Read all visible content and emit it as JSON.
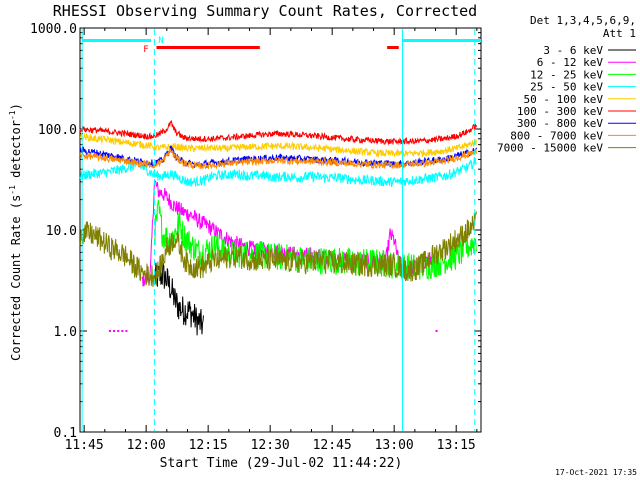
{
  "chart_data": {
    "type": "line",
    "title": "RHESSI Observing Summary Count Rates, Corrected",
    "xlabel": "Start Time (29-Jul-02 11:44:22)",
    "ylabel_main": "Corrected Count Rate (s",
    "ylabel_sup1": "-1",
    "ylabel_mid": " detector",
    "ylabel_sup2": "-1",
    "ylabel_end": ")",
    "yscale": "log",
    "ylim": [
      0.1,
      1000
    ],
    "xlim_minutes": [
      -1,
      96
    ],
    "x_ticks": [
      {
        "label": "11:45",
        "t": 0
      },
      {
        "label": "12:00",
        "t": 15
      },
      {
        "label": "12:15",
        "t": 30
      },
      {
        "label": "12:30",
        "t": 45
      },
      {
        "label": "12:45",
        "t": 60
      },
      {
        "label": "13:00",
        "t": 75
      },
      {
        "label": "13:15",
        "t": 90
      }
    ],
    "y_ticks": [
      {
        "label": "0.1",
        "v": 0.1
      },
      {
        "label": "1.0",
        "v": 1
      },
      {
        "label": "10.0",
        "v": 10
      },
      {
        "label": "100.0",
        "v": 100
      },
      {
        "label": "1000.0",
        "v": 1000
      }
    ],
    "legend_header": [
      "Det 1,3,4,5,6,9,",
      "Att 1"
    ],
    "series": [
      {
        "name": "3 - 6 keV",
        "color": "#000000",
        "points": [
          [
            17,
            3.3
          ],
          [
            18,
            3.5
          ],
          [
            19,
            3.6
          ],
          [
            20,
            3.2
          ],
          [
            21,
            2.6
          ],
          [
            22,
            2.0
          ],
          [
            23,
            1.7
          ],
          [
            24,
            1.6
          ],
          [
            25,
            1.6
          ],
          [
            26,
            1.5
          ],
          [
            27,
            1.3
          ],
          [
            28,
            1.2
          ],
          [
            29,
            1.1
          ]
        ]
      },
      {
        "name": "6 - 12 keV",
        "color": "#ff00ff",
        "points": [
          [
            14,
            3.2
          ],
          [
            15,
            3.3
          ],
          [
            16,
            3.4
          ],
          [
            17,
            30
          ],
          [
            18,
            24
          ],
          [
            19,
            23
          ],
          [
            20,
            21
          ],
          [
            21,
            19
          ],
          [
            22,
            17
          ],
          [
            24,
            15
          ],
          [
            26,
            14
          ],
          [
            28,
            12
          ],
          [
            30,
            11
          ],
          [
            32,
            9.5
          ],
          [
            34,
            8.5
          ],
          [
            36,
            7.5
          ],
          [
            38,
            7.0
          ],
          [
            40,
            6.6
          ],
          [
            42,
            6.4
          ],
          [
            44,
            6.3
          ],
          [
            46,
            6.2
          ],
          [
            48,
            6.0
          ],
          [
            50,
            5.8
          ],
          [
            55,
            5.6
          ],
          [
            60,
            5.2
          ],
          [
            65,
            5.0
          ],
          [
            70,
            4.9
          ],
          [
            73,
            4.9
          ],
          [
            74,
            9.0
          ],
          [
            75,
            8.0
          ],
          [
            76,
            5.0
          ],
          [
            78,
            3.5
          ],
          [
            80,
            4.5
          ],
          [
            84,
            5.2
          ]
        ]
      },
      {
        "name": "12 - 25 keV",
        "color": "#00ff00",
        "points": [
          [
            17,
            9.0
          ],
          [
            18,
            16
          ],
          [
            19,
            9.0
          ],
          [
            20,
            8.5
          ],
          [
            21,
            8.0
          ],
          [
            22,
            9.5
          ],
          [
            23,
            12
          ],
          [
            24,
            9.0
          ],
          [
            25,
            8.0
          ],
          [
            26,
            7.0
          ],
          [
            28,
            6.0
          ],
          [
            30,
            6.5
          ],
          [
            32,
            7.0
          ],
          [
            34,
            6.0
          ],
          [
            36,
            5.8
          ],
          [
            40,
            5.8
          ],
          [
            45,
            5.5
          ],
          [
            50,
            5.3
          ],
          [
            55,
            5.0
          ],
          [
            60,
            5.0
          ],
          [
            65,
            4.8
          ],
          [
            70,
            4.8
          ],
          [
            75,
            4.5
          ],
          [
            80,
            4.3
          ],
          [
            84,
            4.5
          ],
          [
            90,
            5.5
          ],
          [
            95,
            8.0
          ]
        ]
      },
      {
        "name": "25 - 50 keV",
        "color": "#00ffff",
        "points": [
          [
            -1,
            34
          ],
          [
            2,
            36
          ],
          [
            5,
            37
          ],
          [
            8,
            39
          ],
          [
            11,
            42
          ],
          [
            13,
            44
          ],
          [
            15,
            40
          ],
          [
            17,
            35
          ],
          [
            19,
            34
          ],
          [
            21,
            36
          ],
          [
            23,
            33
          ],
          [
            25,
            30
          ],
          [
            27,
            30
          ],
          [
            29,
            31
          ],
          [
            31,
            34
          ],
          [
            34,
            35
          ],
          [
            37,
            36
          ],
          [
            40,
            34
          ],
          [
            43,
            35
          ],
          [
            46,
            33
          ],
          [
            49,
            34
          ],
          [
            52,
            33
          ],
          [
            55,
            34
          ],
          [
            58,
            33
          ],
          [
            61,
            33
          ],
          [
            64,
            32
          ],
          [
            67,
            31
          ],
          [
            70,
            31
          ],
          [
            73,
            30
          ],
          [
            76,
            30
          ],
          [
            79,
            31
          ],
          [
            82,
            32
          ],
          [
            85,
            33
          ],
          [
            88,
            35
          ],
          [
            91,
            39
          ],
          [
            93,
            42
          ],
          [
            95,
            50
          ]
        ]
      },
      {
        "name": "50 - 100 keV",
        "color": "#ffcc00",
        "points": [
          [
            -1,
            85
          ],
          [
            3,
            80
          ],
          [
            6,
            78
          ],
          [
            9,
            74
          ],
          [
            12,
            72
          ],
          [
            14,
            70
          ],
          [
            16,
            68
          ],
          [
            18,
            65
          ],
          [
            20,
            66
          ],
          [
            22,
            67
          ],
          [
            24,
            65
          ],
          [
            26,
            64
          ],
          [
            30,
            65
          ],
          [
            34,
            64
          ],
          [
            38,
            66
          ],
          [
            42,
            67
          ],
          [
            46,
            68
          ],
          [
            50,
            67
          ],
          [
            54,
            66
          ],
          [
            58,
            64
          ],
          [
            62,
            62
          ],
          [
            66,
            60
          ],
          [
            70,
            58
          ],
          [
            74,
            57
          ],
          [
            78,
            57
          ],
          [
            82,
            58
          ],
          [
            86,
            60
          ],
          [
            90,
            64
          ],
          [
            93,
            70
          ],
          [
            95,
            75
          ]
        ]
      },
      {
        "name": "100 - 300 keV",
        "color": "#ff0000",
        "points": [
          [
            -1,
            100
          ],
          [
            3,
            97
          ],
          [
            6,
            94
          ],
          [
            9,
            91
          ],
          [
            12,
            88
          ],
          [
            14,
            86
          ],
          [
            16,
            84
          ],
          [
            18,
            88
          ],
          [
            20,
            100
          ],
          [
            21,
            115
          ],
          [
            22,
            95
          ],
          [
            24,
            82
          ],
          [
            27,
            80
          ],
          [
            31,
            80
          ],
          [
            35,
            82
          ],
          [
            39,
            85
          ],
          [
            43,
            88
          ],
          [
            47,
            90
          ],
          [
            51,
            88
          ],
          [
            55,
            86
          ],
          [
            59,
            83
          ],
          [
            63,
            80
          ],
          [
            67,
            78
          ],
          [
            71,
            76
          ],
          [
            75,
            75
          ],
          [
            79,
            75
          ],
          [
            83,
            77
          ],
          [
            87,
            80
          ],
          [
            90,
            85
          ],
          [
            93,
            95
          ],
          [
            95,
            110
          ]
        ]
      },
      {
        "name": "300 - 800 keV",
        "color": "#0000ff",
        "points": [
          [
            -1,
            62
          ],
          [
            3,
            58
          ],
          [
            7,
            54
          ],
          [
            11,
            50
          ],
          [
            14,
            47
          ],
          [
            17,
            46
          ],
          [
            19,
            49
          ],
          [
            21,
            65
          ],
          [
            22,
            54
          ],
          [
            24,
            47
          ],
          [
            27,
            44
          ],
          [
            31,
            46
          ],
          [
            35,
            48
          ],
          [
            39,
            50
          ],
          [
            43,
            51
          ],
          [
            47,
            52
          ],
          [
            51,
            51
          ],
          [
            55,
            50
          ],
          [
            59,
            49
          ],
          [
            63,
            48
          ],
          [
            67,
            47
          ],
          [
            71,
            46
          ],
          [
            75,
            45
          ],
          [
            79,
            46
          ],
          [
            83,
            48
          ],
          [
            87,
            50
          ],
          [
            90,
            54
          ],
          [
            93,
            58
          ],
          [
            95,
            62
          ]
        ]
      },
      {
        "name": "800 - 7000 keV",
        "color": "#ff8c00",
        "points": [
          [
            -1,
            55
          ],
          [
            3,
            53
          ],
          [
            7,
            50
          ],
          [
            11,
            48
          ],
          [
            14,
            45
          ],
          [
            17,
            44
          ],
          [
            19,
            48
          ],
          [
            21,
            62
          ],
          [
            22,
            52
          ],
          [
            24,
            46
          ],
          [
            27,
            43
          ],
          [
            31,
            44
          ],
          [
            35,
            46
          ],
          [
            39,
            47
          ],
          [
            43,
            48
          ],
          [
            47,
            49
          ],
          [
            51,
            48
          ],
          [
            55,
            48
          ],
          [
            59,
            47
          ],
          [
            63,
            46
          ],
          [
            67,
            45
          ],
          [
            71,
            44
          ],
          [
            75,
            44
          ],
          [
            79,
            45
          ],
          [
            83,
            46
          ],
          [
            87,
            48
          ],
          [
            90,
            52
          ],
          [
            93,
            56
          ],
          [
            95,
            60
          ]
        ]
      },
      {
        "name": "7000 - 15000 keV",
        "color": "#808000",
        "points": [
          [
            -1,
            9.5
          ],
          [
            2,
            9.0
          ],
          [
            4,
            8.0
          ],
          [
            6,
            6.8
          ],
          [
            8,
            6.2
          ],
          [
            10,
            5.5
          ],
          [
            12,
            4.5
          ],
          [
            14,
            3.8
          ],
          [
            16,
            3.5
          ],
          [
            18,
            3.8
          ],
          [
            19,
            5.0
          ],
          [
            20,
            6.5
          ],
          [
            21,
            7.5
          ],
          [
            22,
            8.5
          ],
          [
            23,
            7.0
          ],
          [
            24,
            5.5
          ],
          [
            25,
            4.5
          ],
          [
            27,
            4.3
          ],
          [
            29,
            4.3
          ],
          [
            31,
            5.0
          ],
          [
            33,
            5.0
          ],
          [
            35,
            5.5
          ],
          [
            37,
            5.5
          ],
          [
            39,
            5.3
          ],
          [
            42,
            5.0
          ],
          [
            45,
            5.0
          ],
          [
            48,
            5.0
          ],
          [
            52,
            4.8
          ],
          [
            56,
            4.8
          ],
          [
            60,
            4.8
          ],
          [
            64,
            4.6
          ],
          [
            68,
            4.5
          ],
          [
            72,
            4.5
          ],
          [
            75,
            4.5
          ],
          [
            77,
            4.2
          ],
          [
            79,
            4.0
          ],
          [
            81,
            4.3
          ],
          [
            83,
            5.0
          ],
          [
            85,
            5.8
          ],
          [
            87,
            6.5
          ],
          [
            89,
            7.5
          ],
          [
            91,
            8.5
          ],
          [
            93,
            10
          ],
          [
            95,
            12
          ]
        ]
      }
    ],
    "markers": {
      "vertical_solid_t": [
        -0.5,
        77
      ],
      "vertical_dashed_t": [
        17,
        94.5
      ],
      "flag_labels": [
        "F",
        "N"
      ],
      "cyan_bars": [
        [
          -0.5,
          16.2
        ],
        [
          77,
          96
        ]
      ],
      "red_bars": [
        [
          17.5,
          42.5
        ],
        [
          73.3,
          76.1
        ]
      ],
      "magenta_dots_t": [
        6,
        7,
        8,
        9,
        10,
        85
      ]
    }
  },
  "timestamp": "17-Oct-2021 17:35"
}
